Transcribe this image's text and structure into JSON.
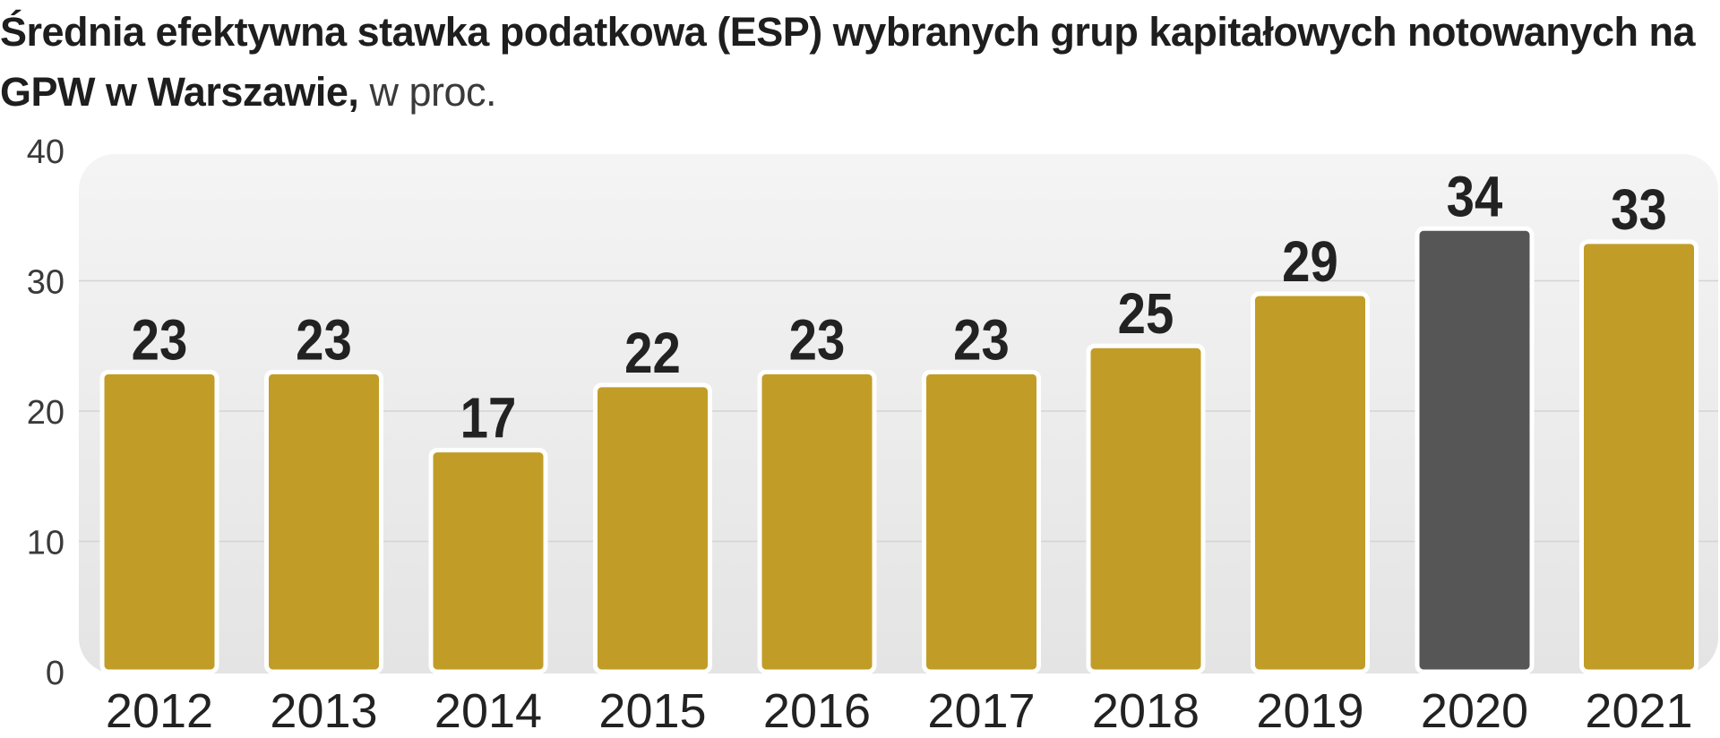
{
  "chart_data": {
    "type": "bar",
    "title": "Średnia efektywna stawka podatkowa (ESP) wybranych grup kapitałowych notowanych na GPW w Warszawie,",
    "title_unit": "w proc.",
    "xlabel": "",
    "ylabel": "",
    "ylim": [
      0,
      40
    ],
    "yticks": [
      0,
      10,
      20,
      30,
      40
    ],
    "grid": true,
    "categories": [
      "2012",
      "2013",
      "2014",
      "2015",
      "2016",
      "2017",
      "2018",
      "2019",
      "2020",
      "2021"
    ],
    "values": [
      23,
      23,
      17,
      22,
      23,
      23,
      25,
      29,
      34,
      33
    ],
    "highlight_index": 8,
    "colors": {
      "bar": "#c19d27",
      "highlight": "#565656",
      "plot_background": "#ebebeb",
      "label": "#222222"
    }
  }
}
